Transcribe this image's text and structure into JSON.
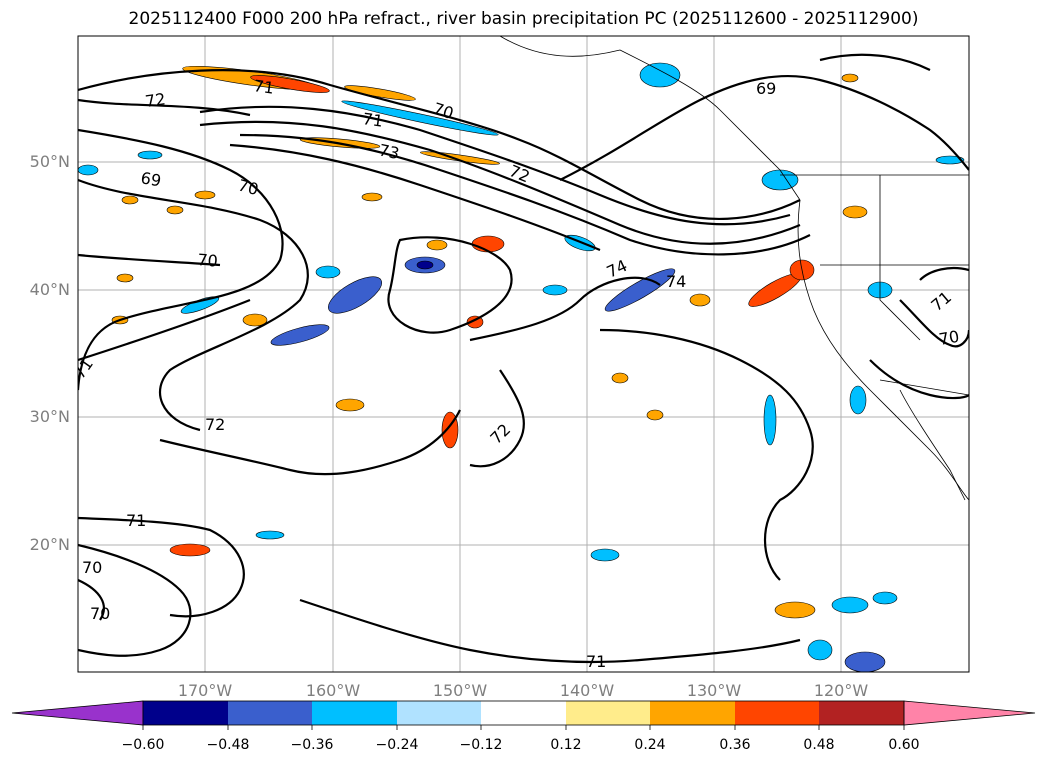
{
  "title": "2025112400 F000 200 hPa refract., river basin precipitation PC (2025112600 - 2025112900)",
  "lat_labels": [
    "50°N",
    "40°N",
    "30°N",
    "20°N"
  ],
  "lon_labels": [
    "170°W",
    "160°W",
    "150°W",
    "140°W",
    "130°W",
    "120°W"
  ],
  "contour_labels": [
    "72",
    "71",
    "70",
    "71",
    "73",
    "72",
    "69",
    "70",
    "70",
    "69",
    "74",
    "74",
    "71",
    "72",
    "72",
    "71",
    "70",
    "70",
    "71",
    "71",
    "70"
  ],
  "colorbar": {
    "ticks": [
      "−0.60",
      "−0.48",
      "−0.36",
      "−0.24",
      "−0.12",
      "0.12",
      "0.24",
      "0.36",
      "0.48",
      "0.60"
    ],
    "colors": [
      "#9932cc",
      "#00008b",
      "#3a5fcd",
      "#00bfff",
      "#b0e2ff",
      "#ffffff",
      "#ffec8b",
      "#ffa500",
      "#ff4500",
      "#b22222",
      "#ff83a8"
    ]
  }
}
